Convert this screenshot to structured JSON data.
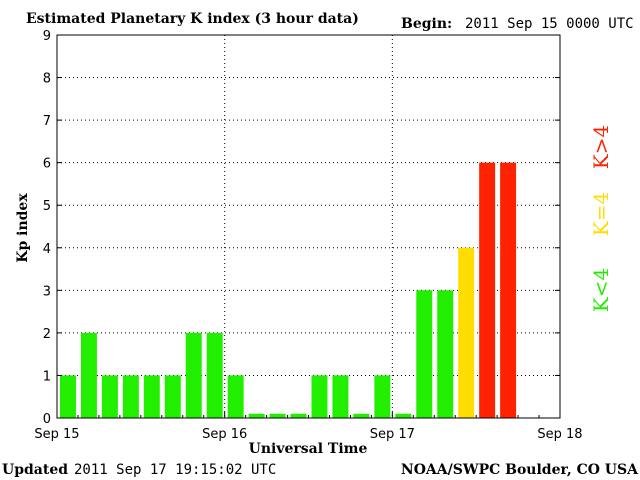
{
  "header": {
    "title": "Estimated Planetary K index (3 hour data)",
    "begin_label": "Begin:",
    "begin_value": "2011 Sep 15 0000 UTC"
  },
  "footer": {
    "updated_label": "Updated",
    "updated_value": "2011 Sep 17 19:15:02 UTC",
    "source": "NOAA/SWPC Boulder, CO USA"
  },
  "colors": {
    "low": "#22ee00",
    "equal": "#ffdd00",
    "high": "#ff2200"
  },
  "chart_data": {
    "type": "bar",
    "title": "Estimated Planetary K index (3 hour data)",
    "xlabel": "Universal Time",
    "ylabel": "Kp index",
    "ylim": [
      0,
      9
    ],
    "y_ticks": [
      "0",
      "1",
      "2",
      "3",
      "4",
      "5",
      "6",
      "7",
      "8",
      "9"
    ],
    "x_tick_labels": [
      "Sep 15",
      "Sep 16",
      "Sep 17",
      "Sep 18"
    ],
    "grid": true,
    "interval_hours": 3,
    "values": [
      1,
      2,
      1,
      1,
      1,
      1,
      2,
      2,
      1,
      0.1,
      0.1,
      0.1,
      1,
      1,
      0.1,
      1,
      0.1,
      3,
      3,
      4,
      6,
      6
    ],
    "legend": [
      "K<4",
      "K=4",
      "K>4"
    ],
    "legend_position": "right"
  }
}
